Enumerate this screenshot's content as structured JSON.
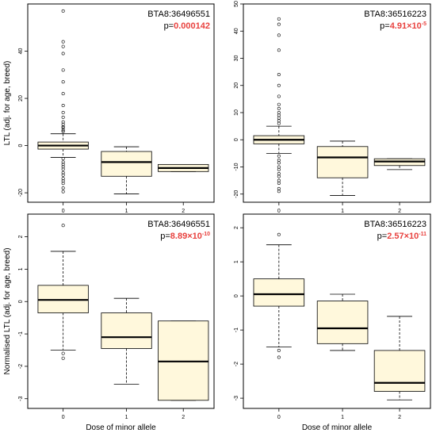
{
  "colors": {
    "box_fill": "#fff8dc",
    "pvalue": "#e8413e",
    "frame": "#000000",
    "whisker": "#000000"
  },
  "chart_data": [
    {
      "type": "box",
      "snp": "BTA8:36496551",
      "p_prefix": "p=",
      "p_value": "0.000142",
      "ylabel": "LTL (adj. for age, breed)",
      "xlabel": "",
      "categories": [
        "0",
        "1",
        "2"
      ],
      "yticks": [
        -20,
        0,
        20,
        40
      ],
      "ylim": [
        -24,
        60
      ],
      "boxes": [
        {
          "category": "0",
          "low": -5,
          "q1": -1.5,
          "median": 0,
          "q3": 1.5,
          "high": 5,
          "outliers": [
            57,
            44,
            42,
            39,
            32,
            27,
            22,
            17,
            14,
            12,
            10,
            9,
            8,
            7.5,
            6.5,
            6,
            -5.5,
            -7,
            -8,
            -9,
            -10,
            -11.5,
            -12.5,
            -14,
            -15,
            -16,
            -18,
            -19.5
          ]
        },
        {
          "category": "1",
          "low": -20.5,
          "q1": -13,
          "median": -7,
          "q3": -2.5,
          "high": -0.5,
          "outliers": []
        },
        {
          "category": "2",
          "low": -11,
          "q1": -11,
          "median": -9.5,
          "q3": -8,
          "high": -8,
          "outliers": []
        }
      ]
    },
    {
      "type": "box",
      "snp": "BTA8:36516223",
      "p_prefix": "p=",
      "p_value": "4.91×10",
      "p_exp": "-5",
      "ylabel": "",
      "xlabel": "",
      "categories": [
        "0",
        "1",
        "2"
      ],
      "yticks": [
        -20,
        -10,
        0,
        10,
        20,
        30,
        40,
        50
      ],
      "ylim": [
        -23,
        50
      ],
      "boxes": [
        {
          "category": "0",
          "low": -5,
          "q1": -1.5,
          "median": 0,
          "q3": 1.5,
          "high": 5,
          "outliers": [
            44.5,
            42.5,
            38.5,
            33,
            24,
            20,
            16,
            13,
            11.5,
            10,
            9,
            8,
            7,
            6,
            -6,
            -7.5,
            -8.5,
            -10,
            -11,
            -12.5,
            -13.5,
            -15,
            -16,
            -18,
            -19
          ]
        },
        {
          "category": "1",
          "low": -20.5,
          "q1": -14,
          "median": -6.5,
          "q3": -2.5,
          "high": -0.5,
          "outliers": []
        },
        {
          "category": "2",
          "low": -11,
          "q1": -9.5,
          "median": -8,
          "q3": -7,
          "high": -7,
          "outliers": []
        }
      ]
    },
    {
      "type": "box",
      "snp": "BTA8:36496551",
      "p_prefix": "p=",
      "p_value": "8.89×10",
      "p_exp": "-10",
      "ylabel": "Normalised LTL (adj. for age, breed)",
      "xlabel": "Dose of minor allele",
      "categories": [
        "0",
        "1",
        "2"
      ],
      "yticks": [
        -3,
        -2,
        -1,
        0,
        1,
        2
      ],
      "ylim": [
        -3.3,
        2.7
      ],
      "boxes": [
        {
          "category": "0",
          "low": -1.5,
          "q1": -0.35,
          "median": 0.05,
          "q3": 0.5,
          "high": 1.55,
          "outliers": [
            2.35,
            -1.6,
            -1.75
          ]
        },
        {
          "category": "1",
          "low": -2.55,
          "q1": -1.45,
          "median": -1.1,
          "q3": -0.35,
          "high": 0.1,
          "outliers": []
        },
        {
          "category": "2",
          "low": -3.05,
          "q1": -3.05,
          "median": -1.85,
          "q3": -0.6,
          "high": -0.6,
          "outliers": []
        }
      ]
    },
    {
      "type": "box",
      "snp": "BTA8:36516223",
      "p_prefix": "p=",
      "p_value": "2.57×10",
      "p_exp": "-11",
      "ylabel": "",
      "xlabel": "Dose of minor allele",
      "categories": [
        "0",
        "1",
        "2"
      ],
      "yticks": [
        -3,
        -2,
        -1,
        0,
        1,
        2
      ],
      "ylim": [
        -3.3,
        2.4
      ],
      "boxes": [
        {
          "category": "0",
          "low": -1.5,
          "q1": -0.3,
          "median": 0.05,
          "q3": 0.5,
          "high": 1.5,
          "outliers": [
            1.8,
            -1.6,
            -1.8
          ]
        },
        {
          "category": "1",
          "low": -1.6,
          "q1": -1.4,
          "median": -0.95,
          "q3": -0.15,
          "high": 0.05,
          "outliers": []
        },
        {
          "category": "2",
          "low": -3.05,
          "q1": -2.8,
          "median": -2.55,
          "q3": -1.6,
          "high": -0.6,
          "outliers": []
        }
      ]
    }
  ]
}
